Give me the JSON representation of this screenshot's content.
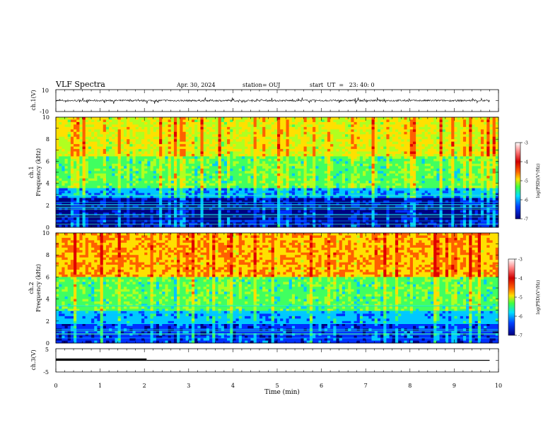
{
  "header": {
    "title": "VLF Spectra",
    "date": "Apr. 30, 2024",
    "station": "station= OUJ",
    "start": "start  UT  =   23: 40: 0"
  },
  "colorbar": {
    "label": "log(PSD)(V²/Hz)",
    "ticks": [
      "-3",
      "-4",
      "-5",
      "-6",
      "-7"
    ],
    "colors": [
      "#d00000",
      "#ff5000",
      "#ffe000",
      "#40ff40",
      "#00e0ff",
      "#0040ff",
      "#000080"
    ]
  },
  "chart_data": [
    {
      "type": "line",
      "panel": "ch1-waveform",
      "ylabel": "ch.1(V)",
      "ylim": [
        -10,
        10
      ],
      "yticks": [
        "10",
        "-10"
      ],
      "xlim": [
        0,
        10
      ],
      "signal_range_approx": [
        -3,
        3
      ],
      "signal_end_min": 9.8
    },
    {
      "type": "heatmap",
      "panel": "ch1-spectrogram",
      "ylabel": "ch.1\nFrequency (kHz)",
      "ylim": [
        0,
        10
      ],
      "yticks": [
        "10",
        "8",
        "6",
        "4",
        "2",
        "0"
      ],
      "xlim": [
        0,
        10
      ],
      "clim": [
        -7,
        -3
      ],
      "band_profile": [
        {
          "freq_khz": [
            0,
            0.6
          ],
          "level": -6.5
        },
        {
          "freq_khz": [
            0.6,
            2.7
          ],
          "level": -6.6
        },
        {
          "freq_khz": [
            2.7,
            3.6
          ],
          "level": -5.8
        },
        {
          "freq_khz": [
            3.6,
            6.5
          ],
          "level": -5.0
        },
        {
          "freq_khz": [
            6.5,
            10
          ],
          "level": -4.4
        }
      ]
    },
    {
      "type": "heatmap",
      "panel": "ch2-spectrogram",
      "ylabel": "ch.2\nFrequency (kHz)",
      "ylim": [
        0,
        10
      ],
      "yticks": [
        "10",
        "8",
        "6",
        "4",
        "2",
        "0"
      ],
      "xlim": [
        0,
        10
      ],
      "clim": [
        -7,
        -3
      ],
      "band_profile": [
        {
          "freq_khz": [
            0,
            1.8
          ],
          "level": -6.2
        },
        {
          "freq_khz": [
            1.8,
            3.0
          ],
          "level": -5.7
        },
        {
          "freq_khz": [
            3.0,
            6.0
          ],
          "level": -5.0
        },
        {
          "freq_khz": [
            6.0,
            10
          ],
          "level": -4.0
        }
      ]
    },
    {
      "type": "line",
      "panel": "ch3-signal",
      "ylabel": "ch.3(V)",
      "ylim": [
        -5,
        5
      ],
      "yticks": [
        "5",
        "-5"
      ],
      "xlim": [
        0,
        10
      ],
      "xlabel": "Time (min)",
      "xticks": [
        "0",
        "1",
        "2",
        "3",
        "4",
        "5",
        "6",
        "7",
        "8",
        "9",
        "10"
      ],
      "series": [
        {
          "x": [
            0,
            2.05
          ],
          "y": [
            0,
            0
          ],
          "style": "thick"
        },
        {
          "x": [
            2.05,
            9.8
          ],
          "y": [
            0,
            0
          ],
          "style": "thin"
        }
      ]
    }
  ]
}
